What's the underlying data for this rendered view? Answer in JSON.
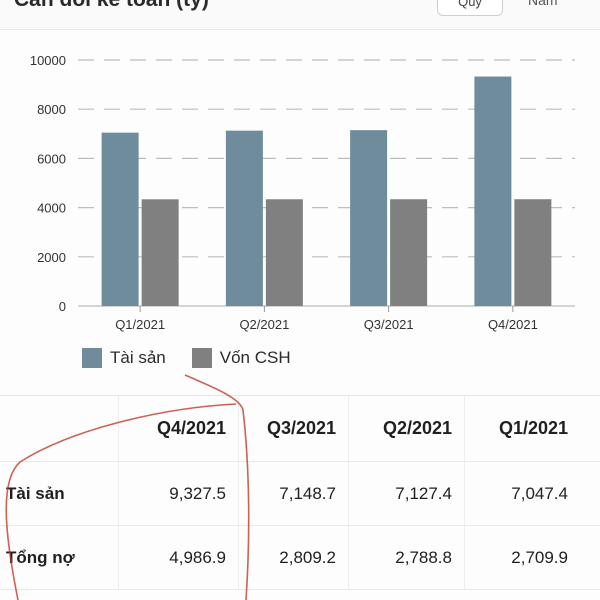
{
  "header": {
    "title": "Cân đối kế toán (tỷ)",
    "period_button": "Quý",
    "right_link": "Năm"
  },
  "chart_data": {
    "type": "bar",
    "categories": [
      "Q1/2021",
      "Q2/2021",
      "Q3/2021",
      "Q4/2021"
    ],
    "series": [
      {
        "name": "Tài sản",
        "values": [
          7047.4,
          7127.4,
          7148.7,
          9327.5
        ],
        "color": "#6f8c9c"
      },
      {
        "name": "Vốn CSH",
        "values": [
          4337.5,
          4338.6,
          4339.5,
          4340.6
        ],
        "color": "#808080"
      }
    ],
    "yticks": [
      "0",
      "2000",
      "4000",
      "6000",
      "8000",
      "10000"
    ],
    "ylim": [
      0,
      10000
    ],
    "grid": true,
    "legend": "bottom-left"
  },
  "table": {
    "columns": [
      "",
      "Q4/2021",
      "Q3/2021",
      "Q2/2021",
      "Q1/2021"
    ],
    "rows": [
      {
        "label": "Tài sản",
        "values": [
          "9,327.5",
          "7,148.7",
          "7,127.4",
          "7,047.4"
        ]
      },
      {
        "label": "Tổng nợ",
        "values": [
          "4,986.9",
          "2,809.2",
          "2,788.8",
          "2,709.9"
        ]
      }
    ]
  }
}
